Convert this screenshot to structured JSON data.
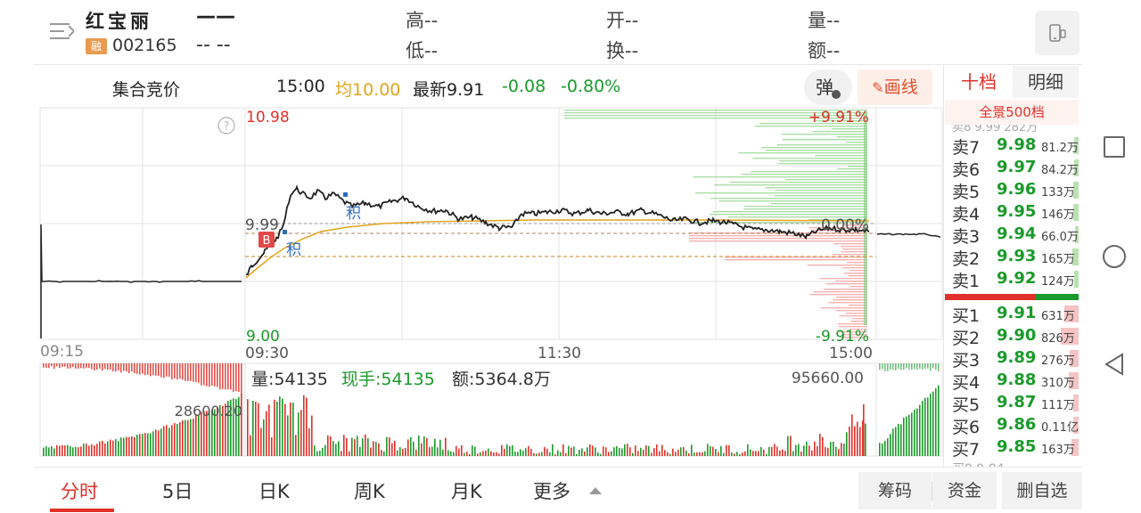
{
  "header": {
    "stock_name": "红宝丽",
    "price": "——",
    "margin_badge": "融",
    "code": "002165",
    "change": "-- --",
    "high_label": "高--",
    "low_label": "低--",
    "open_label": "开--",
    "turnover_label": "换--",
    "volume_label": "量--",
    "amount_label": "额--",
    "switch_icon": "phone-switch-icon"
  },
  "info_row": {
    "auction": "集合竞价",
    "time": "15:00",
    "avg": "均10.00",
    "latest": "最新9.91",
    "change": "-0.08",
    "change_pct": "-0.80%",
    "popup_label": "弹",
    "draw_label": "画线",
    "draw_icon": "pencil-icon"
  },
  "panel_tabs": {
    "ten": "十档",
    "detail": "明细",
    "panorama": "全景500档"
  },
  "chart_labels": {
    "price_high": "10.98",
    "price_mid": "9.99",
    "price_low": "9.00",
    "pct_high": "+9.91%",
    "pct_mid": "0.00%",
    "pct_low": "-9.91%",
    "t_0915": "09:15",
    "t_0930": "09:30",
    "t_1130": "11:30",
    "t_1500": "15:00",
    "marker_b": "B",
    "marker_ji": "积",
    "vol_left_max": "28600.20",
    "vol_max": "95660.00",
    "vol_text": "量:54135",
    "hand_text": "现手:54135",
    "amount_text": "额:5364.8万",
    "help_icon": "help-icon"
  },
  "colors": {
    "up": "#e0312a",
    "down": "#1a9a2a",
    "avg": "#e3a41c",
    "price": "#222222"
  },
  "order_book": {
    "sells": [
      {
        "label": "卖7",
        "price": "9.98",
        "vol": "81.2万"
      },
      {
        "label": "卖6",
        "price": "9.97",
        "vol": "84.2万"
      },
      {
        "label": "卖5",
        "price": "9.96",
        "vol": "133万"
      },
      {
        "label": "卖4",
        "price": "9.95",
        "vol": "146万"
      },
      {
        "label": "卖3",
        "price": "9.94",
        "vol": "66.0万"
      },
      {
        "label": "卖2",
        "price": "9.93",
        "vol": "165万"
      },
      {
        "label": "卖1",
        "price": "9.92",
        "vol": "124万"
      }
    ],
    "buys": [
      {
        "label": "买1",
        "price": "9.91",
        "vol": "631万"
      },
      {
        "label": "买2",
        "price": "9.90",
        "vol": "826万"
      },
      {
        "label": "买3",
        "price": "9.89",
        "vol": "276万"
      },
      {
        "label": "买4",
        "price": "9.88",
        "vol": "310万"
      },
      {
        "label": "买5",
        "price": "9.87",
        "vol": "111万"
      },
      {
        "label": "买6",
        "price": "9.86",
        "vol": "0.11亿"
      },
      {
        "label": "买7",
        "price": "9.85",
        "vol": "163万"
      }
    ]
  },
  "bottom_tabs": {
    "fenshi": "分时",
    "day5": "5日",
    "dayk": "日K",
    "weekk": "周K",
    "monthk": "月K",
    "more": "更多",
    "chips": "筹码",
    "funds": "资金",
    "remove": "删自选"
  }
}
